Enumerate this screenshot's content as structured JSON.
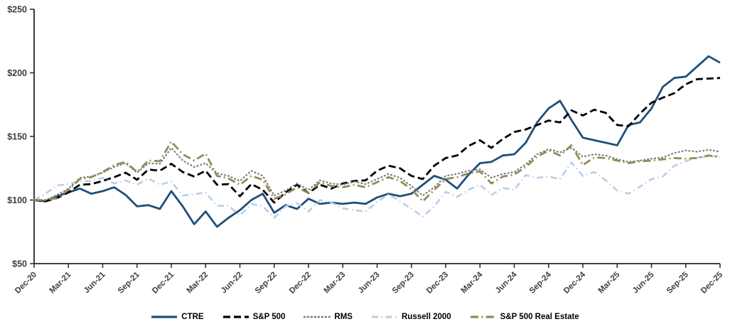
{
  "chart_data": {
    "type": "line",
    "title": "",
    "xlabel": "",
    "ylabel": "",
    "ylim": [
      50,
      250
    ],
    "y_ticks": [
      {
        "value": 50,
        "label": "$50"
      },
      {
        "value": 100,
        "label": "$100"
      },
      {
        "value": 150,
        "label": "$150"
      },
      {
        "value": 200,
        "label": "$200"
      },
      {
        "value": 250,
        "label": "$250"
      }
    ],
    "points_per_series": 61,
    "x_is_monthly": true,
    "x_tick_every_n_points": 3,
    "x_tick_labels": [
      "Dec-20",
      "Mar-21",
      "Jun-21",
      "Sep-21",
      "Dec-21",
      "Mar-22",
      "Jun-22",
      "Sep-22",
      "Dec-22",
      "Mar-23",
      "Jun-23",
      "Sep-23",
      "Dec-23",
      "Mar-24",
      "Jun-24",
      "Sep-24",
      "Dec-24",
      "Mar-25",
      "Jun-25",
      "Sep-25",
      "Dec-25"
    ],
    "grid": false,
    "legend_position": "bottom",
    "axis_color": "#262626",
    "series": [
      {
        "name": "CTRE",
        "color": "#1F4E79",
        "style": "solid",
        "width": 2.8,
        "values": [
          100,
          99,
          103,
          106,
          109,
          105,
          107,
          110,
          104,
          95,
          96,
          93,
          107,
          95,
          81,
          91,
          79,
          86,
          92,
          100,
          105,
          90,
          96,
          93,
          101,
          97,
          98,
          97,
          98,
          97,
          102,
          105,
          103,
          105,
          112,
          119,
          116,
          109,
          120,
          129,
          130,
          135,
          136,
          145,
          161,
          172,
          178,
          163,
          149,
          147,
          145,
          143,
          159,
          161,
          172,
          189,
          196,
          197,
          205,
          213,
          208
        ]
      },
      {
        "name": "S&P 500",
        "color": "#000000",
        "style": "dashed",
        "width": 2.8,
        "values": [
          100,
          99,
          101.5,
          106,
          112,
          112.5,
          115,
          118,
          121.5,
          116,
          124,
          123,
          128.5,
          122,
          118.5,
          123,
          112,
          112.5,
          103,
          112.5,
          108,
          98,
          106,
          112,
          105.5,
          112,
          109,
          113,
          115,
          115.5,
          123,
          127,
          125,
          119,
          116.5,
          127,
          133,
          135,
          142.5,
          147,
          141,
          148,
          153.5,
          155.5,
          159,
          162.5,
          161,
          170.5,
          166.5,
          171,
          168.5,
          159,
          158,
          168,
          176.5,
          180.5,
          184,
          191,
          195,
          195.5,
          196
        ]
      },
      {
        "name": "RMS",
        "color": "#7F7F7F",
        "style": "dotted",
        "width": 2.3,
        "values": [
          100,
          100,
          104,
          109,
          117.5,
          118.5,
          121.5,
          126,
          129,
          121.5,
          129,
          128.5,
          141,
          131,
          126,
          129,
          121,
          119,
          115,
          123,
          119,
          103.5,
          107.5,
          113,
          108,
          115.5,
          113,
          112,
          114.5,
          112.5,
          116.5,
          120.5,
          117.5,
          111,
          103.5,
          110,
          119,
          120.5,
          123,
          124,
          117.5,
          120.5,
          122,
          128,
          136,
          140,
          137.5,
          141,
          134,
          136,
          135,
          132,
          130,
          131,
          132.5,
          133.5,
          137,
          139,
          138,
          139.5,
          138
        ]
      },
      {
        "name": "Russell 2000",
        "color": "#B9CDE5",
        "style": "dashdot-light",
        "width": 2.5,
        "values": [
          100,
          105,
          111.5,
          112.5,
          115,
          115,
          117.5,
          113,
          115.5,
          112,
          117,
          112,
          114.5,
          103.5,
          104.5,
          106,
          95.5,
          95.5,
          88,
          97,
          95,
          86,
          95,
          97.5,
          91,
          100,
          98,
          93.5,
          92,
          91,
          98.5,
          104.5,
          99,
          93,
          87,
          95,
          106.5,
          102.5,
          108,
          112,
          104,
          109.5,
          108,
          119.5,
          117.5,
          118.5,
          116.5,
          129.5,
          119,
          122,
          115.5,
          107.5,
          105,
          110.5,
          116.5,
          118.5,
          127,
          130.5,
          133.5,
          134,
          135
        ]
      },
      {
        "name": "S&P 500 Real Estate",
        "color": "#948A54",
        "style": "dashdot",
        "width": 2.8,
        "values": [
          100,
          100,
          101.5,
          108,
          116.5,
          118,
          122,
          127.5,
          130,
          122,
          131,
          130.5,
          146,
          136,
          131,
          136.5,
          119,
          117,
          112,
          119,
          116,
          101,
          104.5,
          110,
          105.5,
          114,
          111,
          110,
          112,
          110,
          114,
          118,
          115,
          108.5,
          99,
          108,
          116.5,
          118,
          121,
          122.5,
          113,
          118.5,
          120,
          126,
          134,
          139,
          135,
          143,
          127.5,
          133.5,
          133,
          131,
          129,
          130.5,
          131,
          132,
          133,
          132.5,
          133,
          135,
          133.5
        ]
      }
    ]
  }
}
